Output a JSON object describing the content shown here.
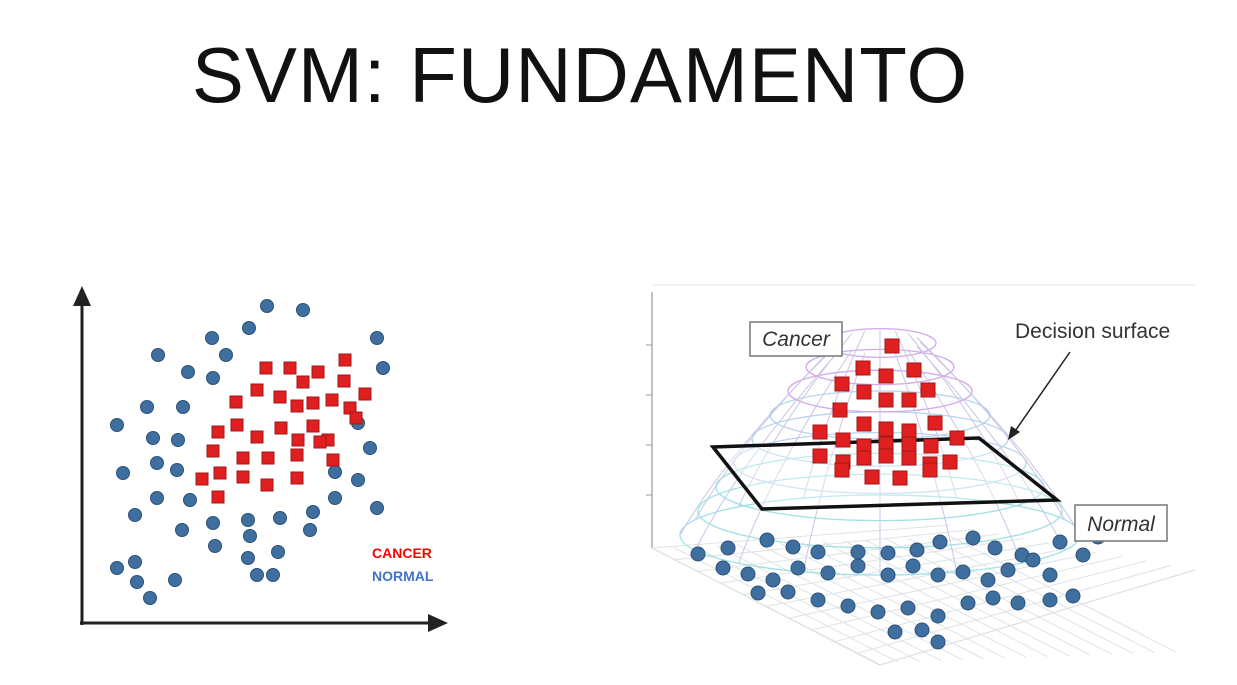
{
  "slide": {
    "title": "SVM: FUNDAMENTO"
  },
  "colors": {
    "cancer": "#e02020",
    "cancer_stroke": "#a01818",
    "normal": "#3f6f9f",
    "normal_stroke": "#2c5279",
    "cancer_label": "#ff0000",
    "normal_label": "#4472c4"
  },
  "left_diagram": {
    "legend": {
      "cancer": "CANCER",
      "normal": "NORMAL"
    }
  },
  "right_diagram": {
    "labels": {
      "cancer": "Cancer",
      "normal": "Normal",
      "decision_surface": "Decision surface"
    }
  }
}
